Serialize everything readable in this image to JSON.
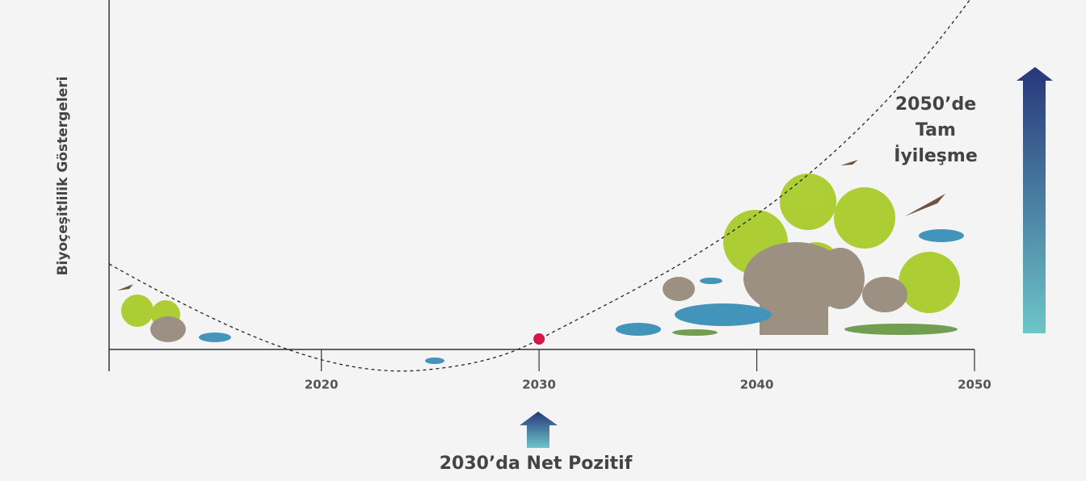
{
  "chart_data": {
    "type": "line",
    "y_label": "Biyoçeşitlilik  Göstergeleri",
    "xlim": [
      2010.25,
      2050
    ],
    "xticks": [
      2020,
      2030,
      2040,
      2050
    ],
    "highlight_x": 2030,
    "marker_color": "#d6164a",
    "annotations": {
      "recovery": [
        "2050’de",
        "Tam",
        "İyileşme"
      ],
      "net_positive": "2030’da Net Pozitif"
    }
  }
}
